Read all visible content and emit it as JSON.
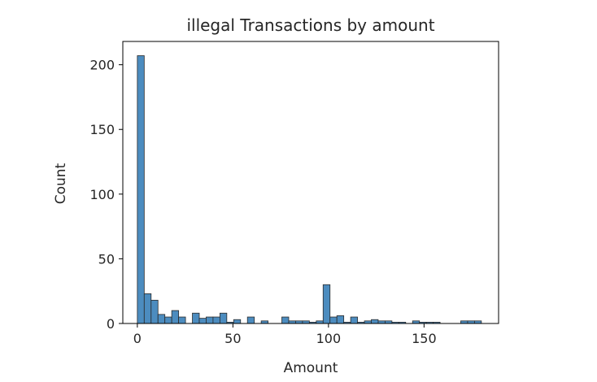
{
  "chart_data": {
    "type": "bar",
    "title": "illegal Transactions by amount",
    "xlabel": "Amount",
    "ylabel": "Count",
    "xlim": [
      -7.6,
      189
    ],
    "ylim": [
      0,
      218
    ],
    "xticks": [
      0,
      50,
      100,
      150
    ],
    "yticks": [
      0,
      50,
      100,
      150,
      200
    ],
    "bin_width": 3.6,
    "bar_color": "#4c8cbf",
    "edge_color": "#2b2b2b",
    "bins": [
      {
        "x0": 0.0,
        "count": 207
      },
      {
        "x0": 3.6,
        "count": 23
      },
      {
        "x0": 7.2,
        "count": 18
      },
      {
        "x0": 10.8,
        "count": 7
      },
      {
        "x0": 14.4,
        "count": 5
      },
      {
        "x0": 18.0,
        "count": 10
      },
      {
        "x0": 21.6,
        "count": 5
      },
      {
        "x0": 25.2,
        "count": 0
      },
      {
        "x0": 28.8,
        "count": 8
      },
      {
        "x0": 32.4,
        "count": 4
      },
      {
        "x0": 36.0,
        "count": 5
      },
      {
        "x0": 39.6,
        "count": 5
      },
      {
        "x0": 43.2,
        "count": 8
      },
      {
        "x0": 46.8,
        "count": 1
      },
      {
        "x0": 50.4,
        "count": 3
      },
      {
        "x0": 54.0,
        "count": 0
      },
      {
        "x0": 57.6,
        "count": 5
      },
      {
        "x0": 61.2,
        "count": 0
      },
      {
        "x0": 64.8,
        "count": 2
      },
      {
        "x0": 68.4,
        "count": 0
      },
      {
        "x0": 72.0,
        "count": 0
      },
      {
        "x0": 75.6,
        "count": 5
      },
      {
        "x0": 79.2,
        "count": 2
      },
      {
        "x0": 82.8,
        "count": 2
      },
      {
        "x0": 86.4,
        "count": 2
      },
      {
        "x0": 90.0,
        "count": 1
      },
      {
        "x0": 93.6,
        "count": 2
      },
      {
        "x0": 97.2,
        "count": 30
      },
      {
        "x0": 100.8,
        "count": 5
      },
      {
        "x0": 104.4,
        "count": 6
      },
      {
        "x0": 108.0,
        "count": 1
      },
      {
        "x0": 111.6,
        "count": 5
      },
      {
        "x0": 115.2,
        "count": 1
      },
      {
        "x0": 118.8,
        "count": 2
      },
      {
        "x0": 122.4,
        "count": 3
      },
      {
        "x0": 126.0,
        "count": 2
      },
      {
        "x0": 129.6,
        "count": 2
      },
      {
        "x0": 133.2,
        "count": 1
      },
      {
        "x0": 136.8,
        "count": 1
      },
      {
        "x0": 140.4,
        "count": 0
      },
      {
        "x0": 144.0,
        "count": 2
      },
      {
        "x0": 147.6,
        "count": 1
      },
      {
        "x0": 151.2,
        "count": 1
      },
      {
        "x0": 154.8,
        "count": 1
      },
      {
        "x0": 158.4,
        "count": 0
      },
      {
        "x0": 162.0,
        "count": 0
      },
      {
        "x0": 165.6,
        "count": 0
      },
      {
        "x0": 169.2,
        "count": 2
      },
      {
        "x0": 172.8,
        "count": 2
      },
      {
        "x0": 176.4,
        "count": 2
      }
    ]
  }
}
